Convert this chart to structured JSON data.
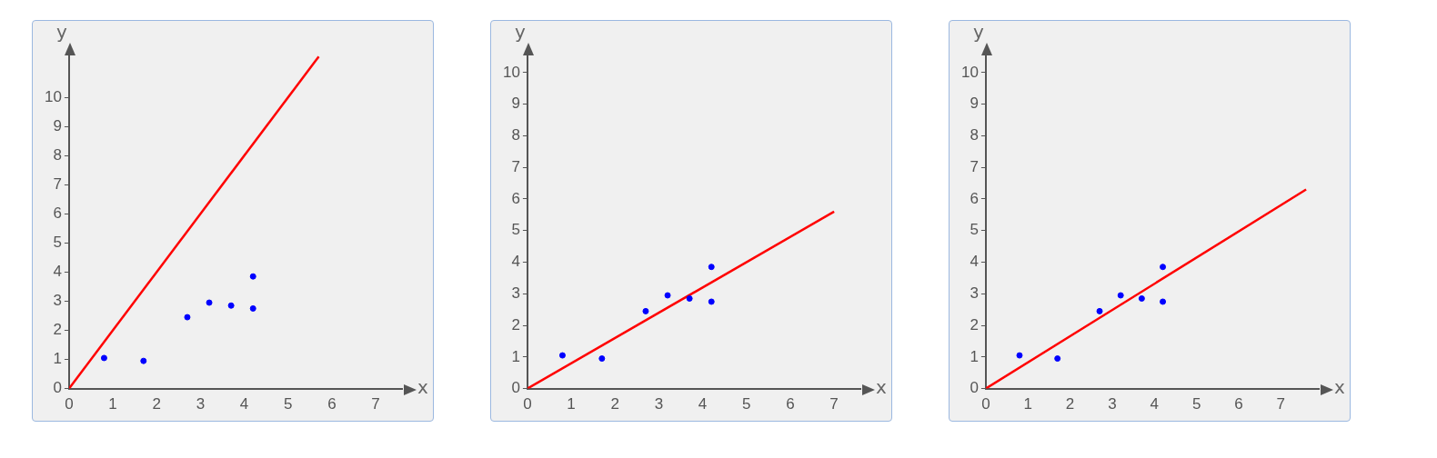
{
  "chart_data": [
    {
      "type": "scatter",
      "xlabel": "x",
      "ylabel": "y",
      "xlim": [
        0,
        7.6
      ],
      "ylim": [
        0,
        11.5
      ],
      "xticks": [
        0,
        1,
        2,
        3,
        4,
        5,
        6,
        7
      ],
      "yticks": [
        0,
        1,
        2,
        3,
        4,
        5,
        6,
        7,
        8,
        9,
        10
      ],
      "grid": false,
      "legend": false,
      "series": [
        {
          "marker": "circle",
          "color": "#0000ff",
          "x": [
            0.8,
            1.7,
            2.7,
            3.2,
            3.7,
            4.2,
            4.2
          ],
          "values": [
            1.05,
            0.95,
            2.45,
            2.95,
            2.85,
            3.85,
            2.75
          ]
        },
        {
          "type": "line",
          "marker": "none",
          "color": "#ff0000",
          "x": [
            0,
            5.7
          ],
          "values": [
            0,
            11.4
          ]
        }
      ]
    },
    {
      "type": "scatter",
      "xlabel": "x",
      "ylabel": "y",
      "xlim": [
        0,
        7.6
      ],
      "ylim": [
        0,
        10.6
      ],
      "xticks": [
        0,
        1,
        2,
        3,
        4,
        5,
        6,
        7
      ],
      "yticks": [
        0,
        1,
        2,
        3,
        4,
        5,
        6,
        7,
        8,
        9,
        10
      ],
      "grid": false,
      "legend": false,
      "series": [
        {
          "marker": "circle",
          "color": "#0000ff",
          "x": [
            0.8,
            1.7,
            2.7,
            3.2,
            3.7,
            4.2,
            4.2
          ],
          "values": [
            1.05,
            0.95,
            2.45,
            2.95,
            2.85,
            3.85,
            2.75
          ]
        },
        {
          "type": "line",
          "marker": "none",
          "color": "#ff0000",
          "x": [
            0,
            7
          ],
          "values": [
            0,
            5.6
          ]
        }
      ]
    },
    {
      "type": "scatter",
      "xlabel": "x",
      "ylabel": "y",
      "xlim": [
        0,
        7.9
      ],
      "ylim": [
        0,
        10.6
      ],
      "xticks": [
        0,
        1,
        2,
        3,
        4,
        5,
        6,
        7
      ],
      "yticks": [
        0,
        1,
        2,
        3,
        4,
        5,
        6,
        7,
        8,
        9,
        10
      ],
      "grid": false,
      "legend": false,
      "series": [
        {
          "marker": "circle",
          "color": "#0000ff",
          "x": [
            0.8,
            1.7,
            2.7,
            3.2,
            3.7,
            4.2,
            4.2
          ],
          "values": [
            1.05,
            0.95,
            2.45,
            2.95,
            2.85,
            3.85,
            2.75
          ]
        },
        {
          "type": "line",
          "marker": "none",
          "color": "#ff0000",
          "x": [
            0,
            7.6
          ],
          "values": [
            0,
            6.3
          ]
        }
      ]
    }
  ]
}
